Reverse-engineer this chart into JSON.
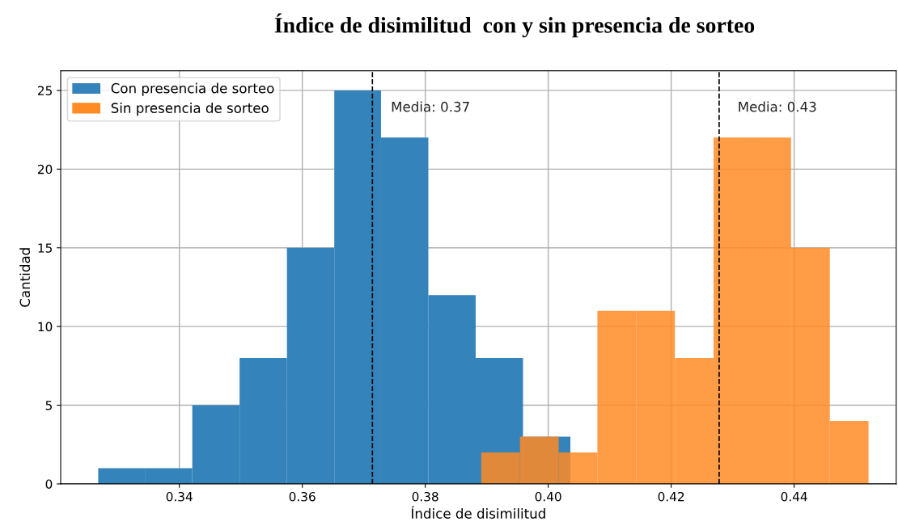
{
  "chart_data": {
    "type": "histogram",
    "title": "Índice de disimilitud  con y sin presencia de sorteo",
    "xlabel": "Índice de disimilitud",
    "ylabel": "Cantidad",
    "bins": [
      0.3268,
      0.3345,
      0.3421,
      0.3498,
      0.3575,
      0.3652,
      0.3728,
      0.3805,
      0.3882,
      0.3959,
      0.4036
    ],
    "series": [
      {
        "name": "Con presencia de sorteo",
        "color": "#3483bb",
        "values": [
          1,
          1,
          5,
          8,
          15,
          25,
          22,
          12,
          8,
          3
        ]
      },
      {
        "name": "Sin presencia de sorteo",
        "color": "#ff8b25",
        "bins": [
          0.3891,
          0.3954,
          0.4017,
          0.408,
          0.4143,
          0.4206,
          0.4269,
          0.4332,
          0.4395,
          0.4458,
          0.4521
        ],
        "values": [
          2,
          3,
          2,
          11,
          11,
          8,
          22,
          22,
          15,
          4
        ]
      }
    ],
    "ref_lines": [
      {
        "axis": "x",
        "value": 0.3714,
        "label": "Media: 0.37",
        "color": "#000000",
        "line_style": "dashed"
      },
      {
        "axis": "x",
        "value": 0.4278,
        "label": "Media: 0.43",
        "color": "#000000",
        "line_style": "dashed"
      }
    ],
    "xlim": [
      0.3207,
      0.4566
    ],
    "ylim": [
      0,
      26.25
    ],
    "xticks": [
      0.34,
      0.36,
      0.38,
      {
        "value": 0.4,
        "label": "0.40"
      },
      0.42,
      0.44
    ],
    "yticks": [
      0,
      5,
      10,
      15,
      20,
      25
    ],
    "grid": true,
    "legend": "top left"
  }
}
